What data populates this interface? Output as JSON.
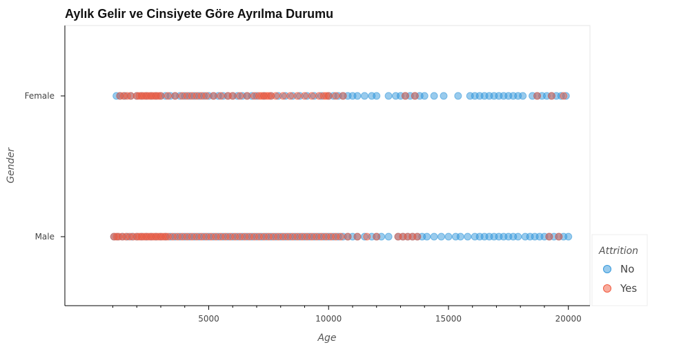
{
  "chart_data": {
    "type": "scatter",
    "title": "Aylık Gelir ve Cinsiyete Göre Ayrılma Durumu",
    "xlabel": "Age",
    "ylabel": "Gender",
    "xlim": [
      -1000,
      20900
    ],
    "categories": [
      "Female",
      "Male"
    ],
    "x_ticks": [
      5000,
      10000,
      15000,
      20000
    ],
    "grid": false,
    "legend": {
      "title": "Attrition",
      "placement": "bottom-right, outside plot",
      "entries": [
        "No",
        "Yes"
      ]
    },
    "colors": {
      "No": "#3498db",
      "Yes": "#f15a3e"
    },
    "series": [
      {
        "name": "No",
        "points": [
          {
            "category": "Female",
            "x": [
              1150,
              1300,
              1500,
              1750,
              2000,
              2200,
              2400,
              2600,
              2800,
              3000,
              3200,
              3400,
              3600,
              3800,
              4000,
              4200,
              4400,
              4600,
              4800,
              5000,
              5200,
              5400,
              5600,
              5800,
              6000,
              6200,
              6400,
              6600,
              6800,
              7000,
              7300,
              7600,
              7900,
              8200,
              8500,
              8800,
              9100,
              9400,
              9700,
              10000,
              10200,
              10400,
              10600,
              10800,
              11000,
              11200,
              11500,
              11800,
              12000,
              12500,
              12800,
              13000,
              13200,
              13400,
              13600,
              13800,
              14000,
              14400,
              14800,
              15400,
              15900,
              16100,
              16300,
              16500,
              16700,
              16900,
              17100,
              17300,
              17500,
              17700,
              17900,
              18100,
              18500,
              18700,
              18900,
              19100,
              19300,
              19500,
              19700,
              19900
            ]
          },
          {
            "category": "Male",
            "x": [
              1050,
              1200,
              1400,
              1600,
              1800,
              2000,
              2200,
              2400,
              2600,
              2800,
              3000,
              3200,
              3400,
              3600,
              3800,
              4000,
              4200,
              4400,
              4600,
              4800,
              5000,
              5200,
              5400,
              5600,
              5800,
              6000,
              6200,
              6400,
              6600,
              6800,
              7000,
              7200,
              7400,
              7600,
              7800,
              8000,
              8200,
              8400,
              8600,
              8800,
              9000,
              9200,
              9400,
              9600,
              9800,
              10000,
              10200,
              10400,
              10600,
              10800,
              11000,
              11200,
              11500,
              11800,
              12000,
              12200,
              12500,
              12900,
              13100,
              13300,
              13500,
              13700,
              13900,
              14100,
              14400,
              14700,
              15000,
              15300,
              15500,
              15800,
              16100,
              16300,
              16500,
              16700,
              16900,
              17100,
              17300,
              17500,
              17700,
              17900,
              18200,
              18400,
              18600,
              18800,
              19000,
              19200,
              19400,
              19600,
              19800,
              20000
            ]
          }
        ]
      },
      {
        "name": "Yes",
        "points": [
          {
            "category": "Female",
            "x": [
              1300,
              1450,
              1600,
              1750,
              2000,
              2100,
              2200,
              2300,
              2400,
              2500,
              2600,
              2700,
              2800,
              2900,
              3000,
              3300,
              3600,
              3900,
              4100,
              4300,
              4500,
              4700,
              4900,
              5200,
              5500,
              5800,
              6000,
              6300,
              6600,
              6900,
              7100,
              7200,
              7300,
              7400,
              7500,
              7600,
              7800,
              8100,
              8400,
              8700,
              9000,
              9300,
              9600,
              9800,
              9900,
              10000,
              10300,
              10600,
              13200,
              13600,
              18700,
              19300,
              19800
            ]
          },
          {
            "category": "Male",
            "x": [
              1050,
              1150,
              1250,
              1400,
              1550,
              1700,
              1850,
              2000,
              2100,
              2200,
              2300,
              2400,
              2500,
              2600,
              2700,
              2800,
              2900,
              3000,
              3100,
              3200,
              3300,
              3500,
              3700,
              3900,
              4100,
              4300,
              4500,
              4700,
              4900,
              5100,
              5300,
              5500,
              5700,
              5900,
              6100,
              6300,
              6500,
              6700,
              6900,
              7100,
              7300,
              7500,
              7700,
              7900,
              8100,
              8300,
              8500,
              8700,
              8900,
              9100,
              9300,
              9500,
              9700,
              9900,
              10100,
              10300,
              10500,
              10800,
              11200,
              11600,
              12000,
              12900,
              13100,
              13300,
              13500,
              13700,
              19200,
              19600
            ]
          }
        ]
      }
    ]
  }
}
